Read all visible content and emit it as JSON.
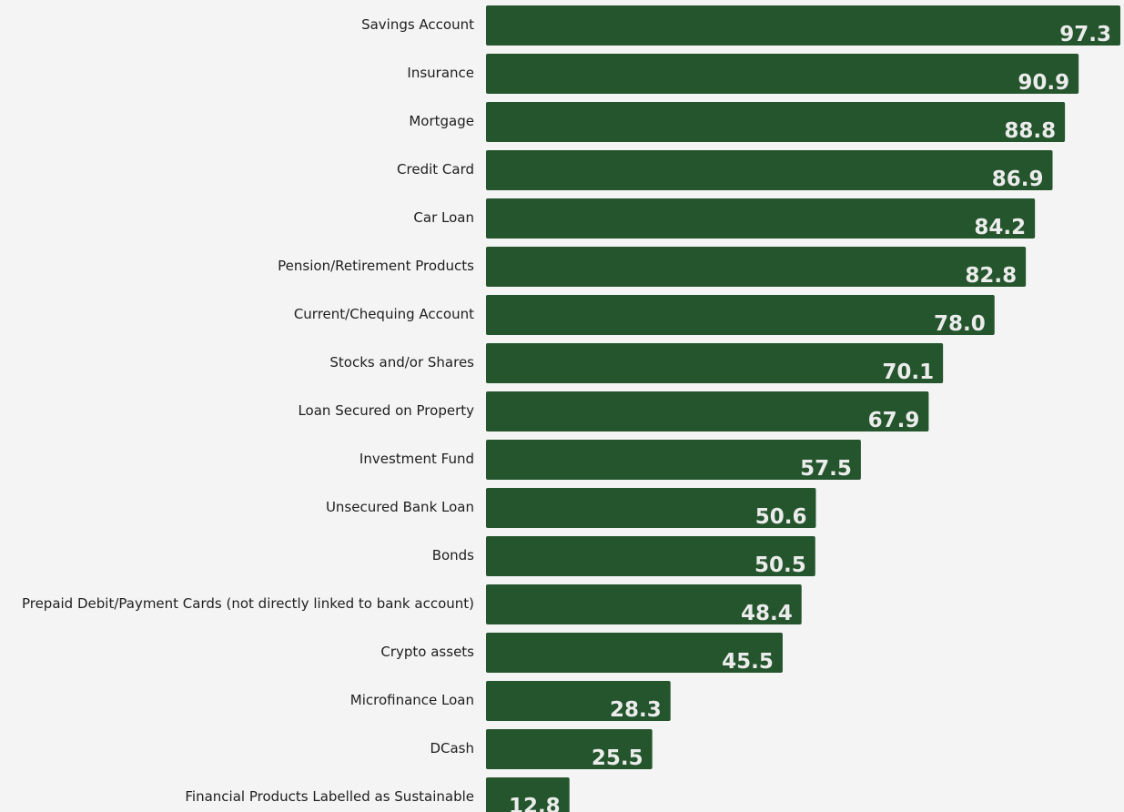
{
  "chart_data": {
    "type": "bar",
    "orientation": "horizontal",
    "title": "",
    "xlabel": "",
    "ylabel": "",
    "xlim": [
      0,
      97.3
    ],
    "grid": false,
    "legend": "none",
    "bar_color": "#24552c",
    "value_label_color": "#ececec",
    "categories": [
      "Savings Account",
      "Insurance",
      "Mortgage",
      "Credit Card",
      "Car Loan",
      "Pension/Retirement Products",
      "Current/Chequing Account",
      "Stocks and/or Shares",
      "Loan Secured on Property",
      "Investment Fund",
      "Unsecured Bank Loan",
      "Bonds",
      "Prepaid Debit/Payment Cards (not directly linked to bank account)",
      "Crypto assets",
      "Microfinance Loan",
      "DCash",
      "Financial Products Labelled as Sustainable"
    ],
    "values": [
      97.3,
      90.9,
      88.8,
      86.9,
      84.2,
      82.8,
      78.0,
      70.1,
      67.9,
      57.5,
      50.6,
      50.5,
      48.4,
      45.5,
      28.3,
      25.5,
      12.8
    ],
    "value_labels": [
      "97.3",
      "90.9",
      "88.8",
      "86.9",
      "84.2",
      "82.8",
      "78.0",
      "70.1",
      "67.9",
      "57.5",
      "50.6",
      "50.5",
      "48.4",
      "45.5",
      "28.3",
      "25.5",
      "12.8"
    ]
  }
}
